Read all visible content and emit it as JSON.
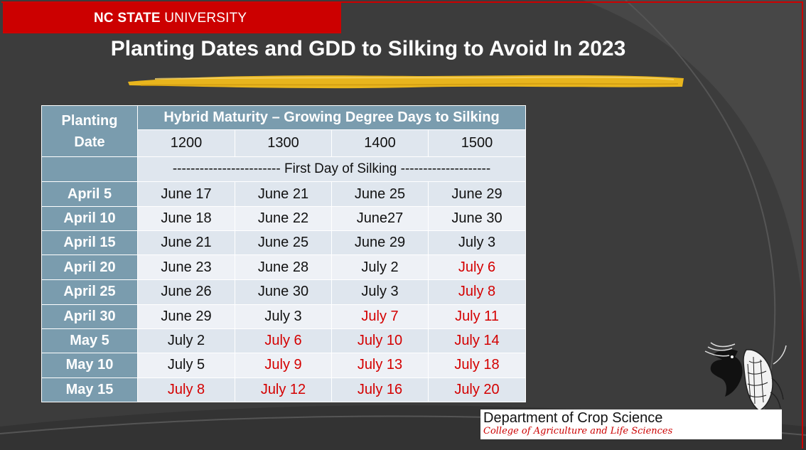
{
  "header": {
    "brand_bold": "NC STATE",
    "brand_rest": " UNIVERSITY"
  },
  "slide": {
    "title": "Planting Dates and GDD to Silking to Avoid In 2023"
  },
  "table": {
    "stub_header_line1": "Planting",
    "stub_header_line2": "Date",
    "group_header": "Hybrid Maturity – Growing Degree Days to Silking",
    "gdd_columns": [
      "1200",
      "1300",
      "1400",
      "1500"
    ],
    "banner": "------------------------ First Day of Silking --------------------",
    "rows": [
      {
        "planting": "April 5",
        "cells": [
          {
            "v": "June 17",
            "avoid": false
          },
          {
            "v": "June 21",
            "avoid": false
          },
          {
            "v": "June 25",
            "avoid": false
          },
          {
            "v": "June 29",
            "avoid": false
          }
        ]
      },
      {
        "planting": "April 10",
        "cells": [
          {
            "v": "June 18",
            "avoid": false
          },
          {
            "v": "June 22",
            "avoid": false
          },
          {
            "v": "June27",
            "avoid": false
          },
          {
            "v": "June 30",
            "avoid": false
          }
        ]
      },
      {
        "planting": "April 15",
        "cells": [
          {
            "v": "June 21",
            "avoid": false
          },
          {
            "v": "June 25",
            "avoid": false
          },
          {
            "v": "June 29",
            "avoid": false
          },
          {
            "v": "July 3",
            "avoid": false
          }
        ]
      },
      {
        "planting": "April 20",
        "cells": [
          {
            "v": "June 23",
            "avoid": false
          },
          {
            "v": "June 28",
            "avoid": false
          },
          {
            "v": "July 2",
            "avoid": false
          },
          {
            "v": "July 6",
            "avoid": true
          }
        ]
      },
      {
        "planting": "April 25",
        "cells": [
          {
            "v": "June 26",
            "avoid": false
          },
          {
            "v": "June 30",
            "avoid": false
          },
          {
            "v": "July 3",
            "avoid": false
          },
          {
            "v": "July 8",
            "avoid": true
          }
        ]
      },
      {
        "planting": "April 30",
        "cells": [
          {
            "v": "June 29",
            "avoid": false
          },
          {
            "v": "July 3",
            "avoid": false
          },
          {
            "v": "July 7",
            "avoid": true
          },
          {
            "v": "July 11",
            "avoid": true
          }
        ]
      },
      {
        "planting": "May 5",
        "cells": [
          {
            "v": "July 2",
            "avoid": false
          },
          {
            "v": "July 6",
            "avoid": true
          },
          {
            "v": "July 10",
            "avoid": true
          },
          {
            "v": "July 14",
            "avoid": true
          }
        ]
      },
      {
        "planting": "May 10",
        "cells": [
          {
            "v": "July 5",
            "avoid": false
          },
          {
            "v": "July 9",
            "avoid": true
          },
          {
            "v": "July 13",
            "avoid": true
          },
          {
            "v": "July 18",
            "avoid": true
          }
        ]
      },
      {
        "planting": "May 15",
        "cells": [
          {
            "v": "July 8",
            "avoid": true
          },
          {
            "v": "July 12",
            "avoid": true
          },
          {
            "v": "July 16",
            "avoid": true
          },
          {
            "v": "July 20",
            "avoid": true
          }
        ]
      }
    ]
  },
  "footer": {
    "department": "Department of Crop Science",
    "college": "College of Agriculture and Life Sciences"
  },
  "colors": {
    "ncsu_red": "#cc0000",
    "header_cell": "#7a9cae",
    "avoid_text": "#d40000",
    "background": "#3c3c3c"
  },
  "icons": {
    "logo": "corn-wolf-logo-icon"
  }
}
